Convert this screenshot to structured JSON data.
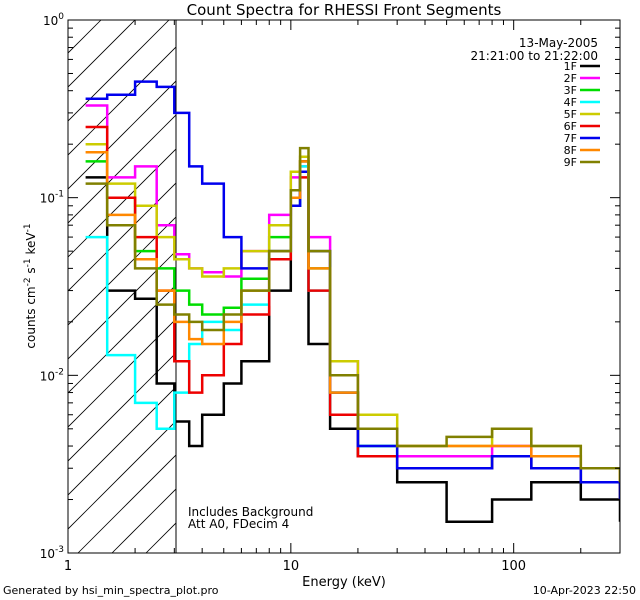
{
  "chart_data": {
    "type": "line",
    "title": "Count Spectra for RHESSI Front Segments",
    "xlabel": "Energy (keV)",
    "ylabel": {
      "prefix": "counts cm",
      "exp1": "-2",
      "mid1": " s",
      "exp2": "-1",
      "mid2": " keV",
      "exp3": "-1"
    },
    "xscale": "log",
    "yscale": "log",
    "xlim": [
      1,
      300
    ],
    "ylim": [
      0.001,
      1
    ],
    "x_ticks": [
      {
        "value": 1,
        "label": "1"
      },
      {
        "value": 10,
        "label": "10"
      },
      {
        "value": 100,
        "label": "100"
      }
    ],
    "y_ticks": [
      {
        "value": 0.001,
        "base": "10",
        "exp": "-3"
      },
      {
        "value": 0.01,
        "base": "10",
        "exp": "-2"
      },
      {
        "value": 0.1,
        "base": "10",
        "exp": "-1"
      },
      {
        "value": 1,
        "base": "10",
        "exp": "0"
      }
    ],
    "date": "13-May-2005",
    "time_range": "21:21:00 to 21:22:00",
    "annotations": [
      "Includes Background",
      "Att A0, FDecim 4"
    ],
    "hatched_region_xmax": 3,
    "series": [
      {
        "name": "1F",
        "color": "#000000",
        "x": [
          1.2,
          1.5,
          2.0,
          2.5,
          3.0,
          3.5,
          4.0,
          5.0,
          6.0,
          8.0,
          10.0,
          11.0,
          12.0,
          15.0,
          20.0,
          30.0,
          50.0,
          80.0,
          120.0,
          200.0,
          300.0
        ],
        "y": [
          0.13,
          0.03,
          0.027,
          0.009,
          0.0055,
          0.004,
          0.006,
          0.009,
          0.012,
          0.03,
          0.09,
          0.16,
          0.015,
          0.005,
          0.0035,
          0.0025,
          0.0015,
          0.002,
          0.0025,
          0.002,
          0.0015
        ]
      },
      {
        "name": "2F",
        "color": "#ff00ff",
        "x": [
          1.2,
          1.5,
          2.0,
          2.5,
          3.0,
          3.5,
          4.0,
          5.0,
          6.0,
          8.0,
          10.0,
          11.0,
          12.0,
          15.0,
          20.0,
          30.0,
          50.0,
          80.0,
          120.0,
          200.0,
          300.0
        ],
        "y": [
          0.33,
          0.13,
          0.15,
          0.07,
          0.048,
          0.04,
          0.038,
          0.036,
          0.05,
          0.08,
          0.13,
          0.15,
          0.06,
          0.012,
          0.005,
          0.0035,
          0.0035,
          0.004,
          0.003,
          0.0025,
          0.002
        ]
      },
      {
        "name": "3F",
        "color": "#00dd00",
        "x": [
          1.2,
          1.5,
          2.0,
          2.5,
          3.0,
          3.5,
          4.0,
          5.0,
          6.0,
          8.0,
          10.0,
          11.0,
          12.0,
          15.0,
          20.0,
          30.0,
          50.0,
          80.0,
          120.0,
          200.0,
          300.0
        ],
        "y": [
          0.16,
          0.1,
          0.05,
          0.04,
          0.03,
          0.025,
          0.022,
          0.024,
          0.035,
          0.06,
          0.11,
          0.14,
          0.04,
          0.008,
          0.004,
          0.003,
          0.003,
          0.0035,
          0.003,
          0.0025,
          0.002
        ]
      },
      {
        "name": "4F",
        "color": "#00ffff",
        "x": [
          1.2,
          1.5,
          2.0,
          2.5,
          3.0,
          3.5,
          4.0,
          5.0,
          6.0,
          8.0,
          10.0,
          11.0,
          12.0,
          15.0,
          20.0,
          30.0,
          50.0,
          80.0,
          120.0,
          200.0,
          300.0
        ],
        "y": [
          0.06,
          0.013,
          0.007,
          0.005,
          0.008,
          0.015,
          0.02,
          0.018,
          0.025,
          0.05,
          0.09,
          0.15,
          0.03,
          0.006,
          0.004,
          0.003,
          0.003,
          0.0035,
          0.003,
          0.0025,
          0.002
        ]
      },
      {
        "name": "5F",
        "color": "#cccc00",
        "x": [
          1.2,
          1.5,
          2.0,
          2.5,
          3.0,
          3.5,
          4.0,
          5.0,
          6.0,
          8.0,
          10.0,
          11.0,
          12.0,
          15.0,
          20.0,
          30.0,
          50.0,
          80.0,
          120.0,
          200.0,
          300.0
        ],
        "y": [
          0.2,
          0.12,
          0.09,
          0.06,
          0.045,
          0.04,
          0.036,
          0.04,
          0.05,
          0.07,
          0.14,
          0.17,
          0.05,
          0.012,
          0.006,
          0.004,
          0.004,
          0.005,
          0.004,
          0.003,
          0.0025
        ]
      },
      {
        "name": "6F",
        "color": "#ee0000",
        "x": [
          1.2,
          1.5,
          2.0,
          2.5,
          3.0,
          3.5,
          4.0,
          5.0,
          6.0,
          8.0,
          10.0,
          11.0,
          12.0,
          15.0,
          20.0,
          30.0,
          50.0,
          80.0,
          120.0,
          200.0,
          300.0
        ],
        "y": [
          0.25,
          0.1,
          0.06,
          0.03,
          0.012,
          0.008,
          0.01,
          0.015,
          0.022,
          0.045,
          0.1,
          0.13,
          0.03,
          0.006,
          0.0035,
          0.003,
          0.003,
          0.0035,
          0.003,
          0.0025,
          0.002
        ]
      },
      {
        "name": "7F",
        "color": "#0000ee",
        "x": [
          1.2,
          1.5,
          2.0,
          2.5,
          3.0,
          3.5,
          4.0,
          5.0,
          6.0,
          8.0,
          10.0,
          11.0,
          12.0,
          15.0,
          20.0,
          30.0,
          50.0,
          80.0,
          120.0,
          200.0,
          300.0
        ],
        "y": [
          0.36,
          0.38,
          0.45,
          0.42,
          0.3,
          0.15,
          0.12,
          0.06,
          0.04,
          0.05,
          0.09,
          0.14,
          0.05,
          0.008,
          0.004,
          0.003,
          0.003,
          0.0035,
          0.003,
          0.0025,
          0.002
        ]
      },
      {
        "name": "8F",
        "color": "#ff8800",
        "x": [
          1.2,
          1.5,
          2.0,
          2.5,
          3.0,
          3.5,
          4.0,
          5.0,
          6.0,
          8.0,
          10.0,
          11.0,
          12.0,
          15.0,
          20.0,
          30.0,
          50.0,
          80.0,
          120.0,
          200.0,
          300.0
        ],
        "y": [
          0.18,
          0.08,
          0.045,
          0.03,
          0.02,
          0.016,
          0.015,
          0.02,
          0.03,
          0.05,
          0.1,
          0.16,
          0.04,
          0.008,
          0.005,
          0.004,
          0.004,
          0.004,
          0.0035,
          0.003,
          0.0025
        ]
      },
      {
        "name": "9F",
        "color": "#808000",
        "x": [
          1.2,
          1.5,
          2.0,
          2.5,
          3.0,
          3.5,
          4.0,
          5.0,
          6.0,
          8.0,
          10.0,
          11.0,
          12.0,
          15.0,
          20.0,
          30.0,
          50.0,
          80.0,
          120.0,
          200.0,
          300.0
        ],
        "y": [
          0.12,
          0.07,
          0.04,
          0.025,
          0.022,
          0.02,
          0.018,
          0.022,
          0.03,
          0.05,
          0.11,
          0.19,
          0.05,
          0.01,
          0.005,
          0.004,
          0.0045,
          0.005,
          0.004,
          0.003,
          0.0025
        ]
      }
    ]
  },
  "footer": {
    "generated_by": "Generated by hsi_min_spectra_plot.pro",
    "timestamp": "10-Apr-2023 22:50"
  }
}
